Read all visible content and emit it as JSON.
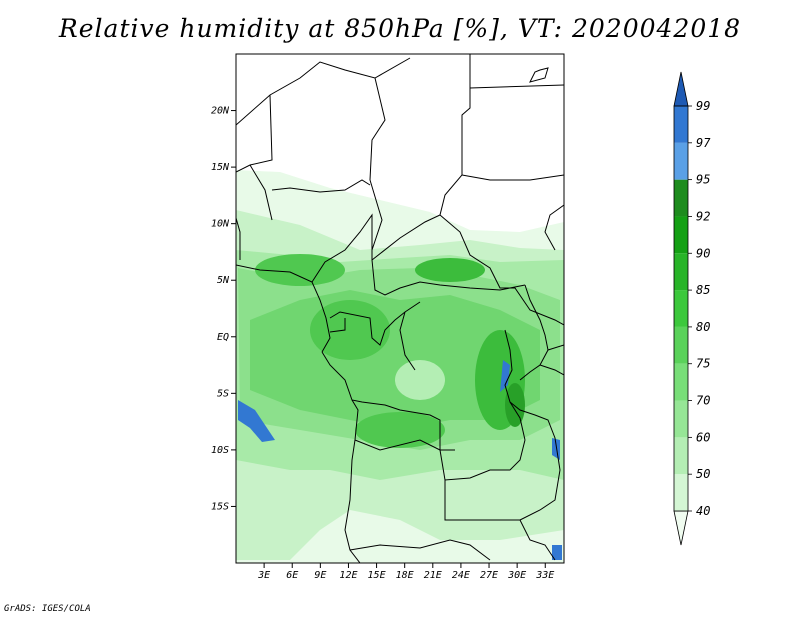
{
  "title": "Relative humidity at 850hPa [%], VT: 2020042018",
  "credit": "GrADS: IGES/COLA",
  "map": {
    "lat_labels": [
      "20N",
      "15N",
      "10N",
      "5N",
      "EQ",
      "5S",
      "10S",
      "15S"
    ],
    "lat_values": [
      20,
      15,
      10,
      5,
      0,
      -5,
      -10,
      -15
    ],
    "lon_labels": [
      "3E",
      "6E",
      "9E",
      "12E",
      "15E",
      "18E",
      "21E",
      "24E",
      "27E",
      "30E",
      "33E"
    ],
    "lon_values": [
      3,
      6,
      9,
      12,
      15,
      18,
      21,
      24,
      27,
      30,
      33
    ],
    "lon_range": [
      0,
      35
    ],
    "lat_range": [
      -20,
      25
    ]
  },
  "colorbar": {
    "levels": [
      "40",
      "50",
      "60",
      "70",
      "75",
      "80",
      "85",
      "90",
      "92",
      "95",
      "97",
      "99"
    ],
    "colors": [
      "#f0fcf0",
      "#d4f6d4",
      "#b4eeb4",
      "#96e696",
      "#78de78",
      "#5ad25a",
      "#3cc83c",
      "#28b428",
      "#14a014",
      "#1e8c1e",
      "#5aa0e6",
      "#3278d2",
      "#1e5ab4"
    ]
  }
}
